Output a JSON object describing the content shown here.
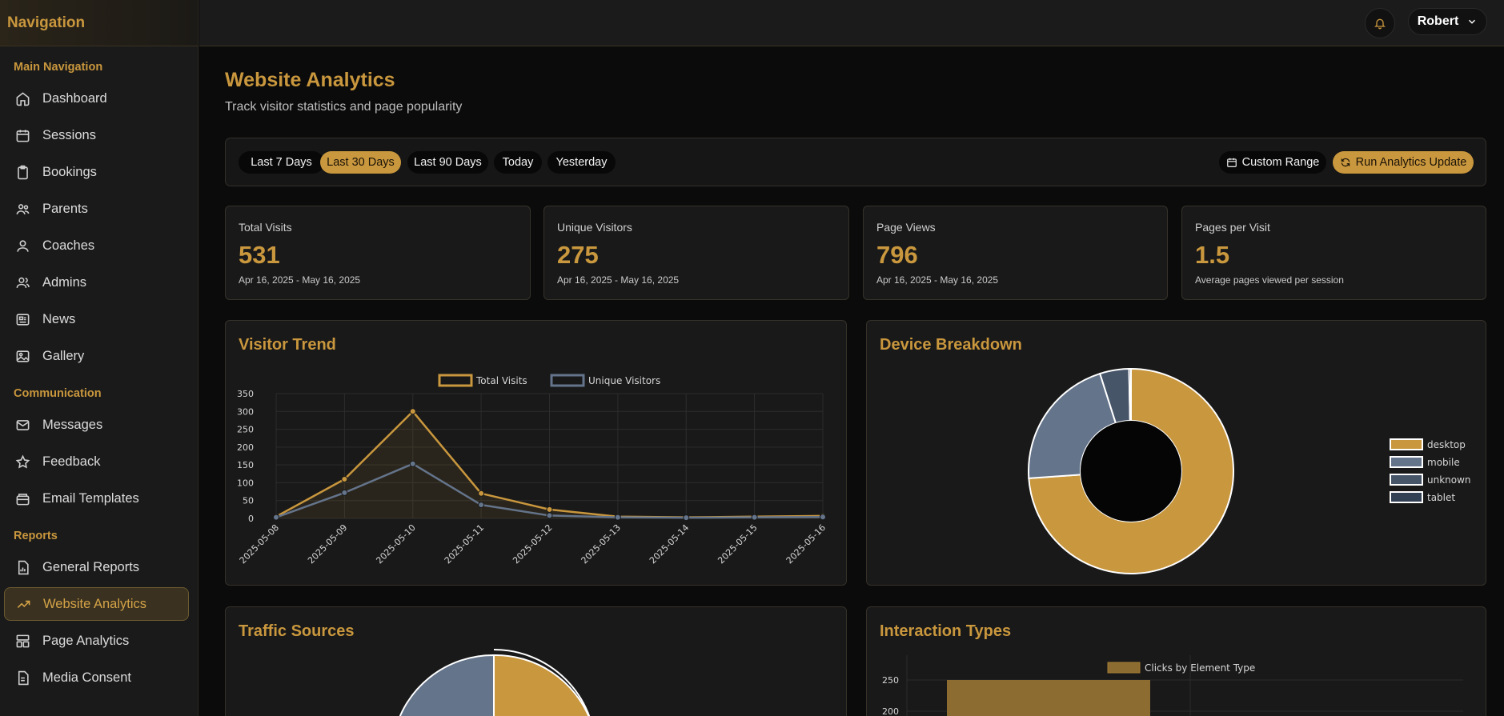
{
  "sidebar": {
    "title": "Navigation",
    "sections": {
      "main": "Main Navigation",
      "communication": "Communication",
      "reports": "Reports"
    },
    "items": [
      {
        "label": "Dashboard"
      },
      {
        "label": "Sessions"
      },
      {
        "label": "Bookings"
      },
      {
        "label": "Parents"
      },
      {
        "label": "Coaches"
      },
      {
        "label": "Admins"
      },
      {
        "label": "News"
      },
      {
        "label": "Gallery"
      },
      {
        "label": "Messages"
      },
      {
        "label": "Feedback"
      },
      {
        "label": "Email Templates"
      },
      {
        "label": "General Reports"
      },
      {
        "label": "Website Analytics"
      },
      {
        "label": "Page Analytics"
      },
      {
        "label": "Media Consent"
      }
    ],
    "active_item": "Website Analytics"
  },
  "topbar": {
    "user_name": "Robert"
  },
  "page": {
    "title": "Website Analytics",
    "subtitle": "Track visitor statistics and page popularity"
  },
  "filters": {
    "ranges": [
      "Last 7 Days",
      "Last 30 Days",
      "Last 90 Days",
      "Today",
      "Yesterday"
    ],
    "active_range": "Last 30 Days",
    "custom_range": "Custom Range",
    "run_update": "Run Analytics Update"
  },
  "stats": [
    {
      "label": "Total Visits",
      "value": "531",
      "sub": "Apr 16, 2025 - May 16, 2025"
    },
    {
      "label": "Unique Visitors",
      "value": "275",
      "sub": "Apr 16, 2025 - May 16, 2025"
    },
    {
      "label": "Page Views",
      "value": "796",
      "sub": "Apr 16, 2025 - May 16, 2025"
    },
    {
      "label": "Pages per Visit",
      "value": "1.5",
      "sub": "Average pages viewed per session"
    }
  ],
  "panels": {
    "visitor_trend": "Visitor Trend",
    "device_breakdown": "Device Breakdown",
    "traffic_sources": "Traffic Sources",
    "interaction_types": "Interaction Types"
  },
  "colors": {
    "accent": "#c9973d",
    "slate": "#64748b",
    "dark_slate": "#475569",
    "background": "#0b0b0b"
  },
  "chart_data": [
    {
      "type": "line",
      "x": [
        "2025-05-08",
        "2025-05-09",
        "2025-05-10",
        "2025-05-11",
        "2025-05-12",
        "2025-05-13",
        "2025-05-14",
        "2025-05-15",
        "2025-05-16"
      ],
      "series": [
        {
          "name": "Total Visits",
          "values": [
            5,
            110,
            300,
            70,
            25,
            5,
            3,
            5,
            7
          ],
          "color": "#c9973d"
        },
        {
          "name": "Unique Visitors",
          "values": [
            3,
            72,
            153,
            38,
            8,
            3,
            2,
            3,
            4
          ],
          "color": "#64748b"
        }
      ],
      "yticks": [
        0,
        50,
        100,
        150,
        200,
        250,
        300,
        350
      ],
      "ylim": [
        0,
        350
      ],
      "grid": true,
      "legend": "top-center"
    },
    {
      "type": "pie",
      "variant": "doughnut",
      "labels": [
        "desktop",
        "mobile",
        "unknown",
        "tablet"
      ],
      "values": [
        73.9,
        21.2,
        4.6,
        0.3
      ],
      "colors": [
        "#c9973d",
        "#64748b",
        "#475569",
        "#334155"
      ],
      "legend": "right"
    },
    {
      "type": "pie",
      "labels": [],
      "values": [],
      "note_visible": "partially visible"
    },
    {
      "type": "bar",
      "series": [
        {
          "name": "Clicks by Element Type",
          "values": [
            250
          ]
        }
      ],
      "yticks": [
        250,
        200
      ],
      "legend": "top-center"
    }
  ]
}
